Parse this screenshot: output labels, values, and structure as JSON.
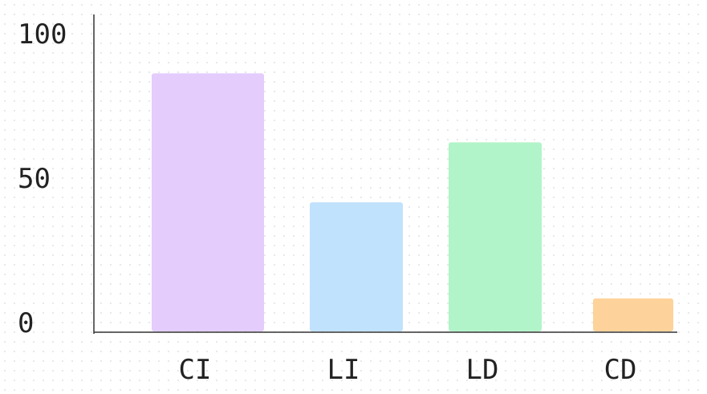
{
  "chart_data": {
    "type": "bar",
    "title": "",
    "xlabel": "",
    "ylabel": "",
    "categories": [
      "CI",
      "LI",
      "LD",
      "CD"
    ],
    "values": [
      86,
      43,
      63,
      11
    ],
    "colors": [
      "#e4ccfd",
      "#c0e2fd",
      "#b2f4c9",
      "#fdd39b"
    ],
    "ylim": [
      0,
      100
    ],
    "yticks": [
      "0",
      "50",
      "100"
    ],
    "grid": false,
    "axis_color": "#333333",
    "text_color": "#222222"
  }
}
